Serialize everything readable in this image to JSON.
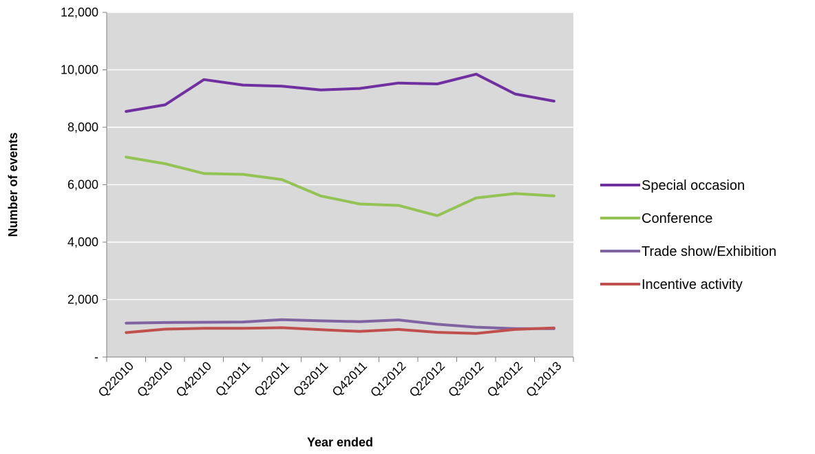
{
  "chart_data": {
    "type": "line",
    "xlabel": "Year ended",
    "ylabel": "Number of events",
    "categories": [
      "Q22010",
      "Q32010",
      "Q42010",
      "Q12011",
      "Q22011",
      "Q32011",
      "Q42011",
      "Q12012",
      "Q22012",
      "Q32012",
      "Q42012",
      "Q12013"
    ],
    "ylim": [
      0,
      12000
    ],
    "yticks": [
      0,
      2000,
      4000,
      6000,
      8000,
      10000,
      12000
    ],
    "ytick_labels": [
      "-",
      "2,000",
      "4,000",
      "6,000",
      "8,000",
      "10,000",
      "12,000"
    ],
    "grid": true,
    "legend_position": "right",
    "plot_background": "#d9d9d9",
    "series": [
      {
        "name": "Special occasion",
        "color": "#7030a0",
        "values": [
          8550,
          8780,
          9660,
          9470,
          9430,
          9300,
          9350,
          9540,
          9510,
          9850,
          9160,
          8910
        ]
      },
      {
        "name": "Conference",
        "color": "#92c353",
        "values": [
          6960,
          6730,
          6390,
          6360,
          6180,
          5610,
          5330,
          5280,
          4920,
          5540,
          5690,
          5610
        ]
      },
      {
        "name": "Trade show/Exhibition",
        "color": "#8064a2",
        "values": [
          1180,
          1200,
          1210,
          1220,
          1300,
          1260,
          1230,
          1290,
          1140,
          1040,
          990,
          990
        ]
      },
      {
        "name": "Incentive activity",
        "color": "#c0504d",
        "values": [
          850,
          970,
          1000,
          1000,
          1020,
          950,
          890,
          960,
          860,
          820,
          960,
          1010
        ]
      }
    ]
  }
}
